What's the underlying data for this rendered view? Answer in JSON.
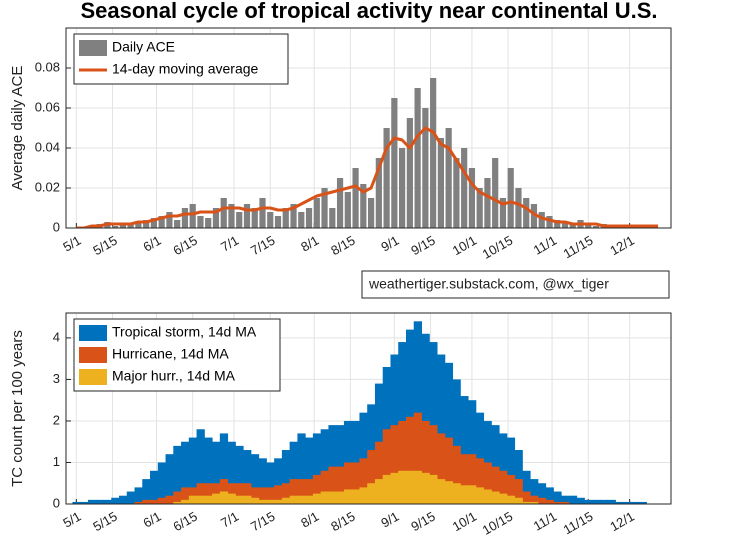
{
  "chart_data": [
    {
      "type": "bar",
      "title": "Seasonal cycle of tropical activity near continental U.S.",
      "y_label": "Average daily ACE",
      "annotation": "weathertiger.substack.com, @wx_tiger",
      "legend": "upper left",
      "grid": true,
      "x": [
        "5/1",
        "5/4",
        "5/7",
        "5/10",
        "5/13",
        "5/16",
        "5/19",
        "5/22",
        "5/25",
        "5/28",
        "5/31",
        "6/3",
        "6/6",
        "6/9",
        "6/12",
        "6/15",
        "6/18",
        "6/21",
        "6/24",
        "6/27",
        "6/30",
        "7/3",
        "7/6",
        "7/9",
        "7/12",
        "7/15",
        "7/18",
        "7/21",
        "7/24",
        "7/27",
        "7/30",
        "8/2",
        "8/5",
        "8/8",
        "8/11",
        "8/14",
        "8/17",
        "8/20",
        "8/23",
        "8/26",
        "8/29",
        "9/1",
        "9/4",
        "9/7",
        "9/10",
        "9/13",
        "9/16",
        "9/19",
        "9/22",
        "9/25",
        "9/28",
        "10/1",
        "10/4",
        "10/7",
        "10/10",
        "10/13",
        "10/16",
        "10/19",
        "10/22",
        "10/25",
        "10/28",
        "10/31",
        "11/3",
        "11/6",
        "11/9",
        "11/12",
        "11/15",
        "11/18",
        "11/21",
        "11/24",
        "11/27",
        "11/30",
        "12/3",
        "12/6",
        "12/9",
        "12/12"
      ],
      "xlim": [
        "4/27",
        "12/17"
      ],
      "xticks": [
        "5/1",
        "5/15",
        "6/1",
        "6/15",
        "7/1",
        "7/15",
        "8/1",
        "8/15",
        "9/1",
        "9/15",
        "10/1",
        "10/15",
        "11/1",
        "11/15",
        "12/1"
      ],
      "ylim": [
        0,
        0.1
      ],
      "yticks": [
        0,
        0.02,
        0.04,
        0.06,
        0.08
      ],
      "series": [
        {
          "name": "Daily ACE",
          "type": "bar",
          "color": "#808080",
          "values": [
            0,
            0,
            0.001,
            0.002,
            0.003,
            0.001,
            0.002,
            0.002,
            0.003,
            0.004,
            0.005,
            0.006,
            0.008,
            0.004,
            0.01,
            0.012,
            0.006,
            0.005,
            0.01,
            0.015,
            0.012,
            0.008,
            0.012,
            0.01,
            0.015,
            0.008,
            0.006,
            0.01,
            0.012,
            0.008,
            0.01,
            0.015,
            0.02,
            0.01,
            0.025,
            0.018,
            0.03,
            0.022,
            0.015,
            0.035,
            0.05,
            0.065,
            0.04,
            0.055,
            0.07,
            0.06,
            0.075,
            0.045,
            0.05,
            0.035,
            0.04,
            0.03,
            0.02,
            0.025,
            0.035,
            0.015,
            0.03,
            0.02,
            0.015,
            0.012,
            0.008,
            0.006,
            0.004,
            0.003,
            0.002,
            0.004,
            0.002,
            0.001,
            0.002,
            0.001,
            0.001,
            0.001,
            0,
            0.001,
            0,
            0
          ]
        },
        {
          "name": "14-day moving average",
          "type": "line",
          "color": "#d95319",
          "values": [
            0,
            0,
            0.001,
            0.001,
            0.002,
            0.002,
            0.002,
            0.002,
            0.003,
            0.003,
            0.004,
            0.005,
            0.006,
            0.006,
            0.007,
            0.007,
            0.008,
            0.008,
            0.008,
            0.01,
            0.01,
            0.01,
            0.009,
            0.009,
            0.01,
            0.01,
            0.009,
            0.009,
            0.01,
            0.012,
            0.014,
            0.016,
            0.017,
            0.018,
            0.019,
            0.02,
            0.021,
            0.018,
            0.02,
            0.03,
            0.04,
            0.045,
            0.044,
            0.04,
            0.046,
            0.05,
            0.048,
            0.042,
            0.04,
            0.034,
            0.028,
            0.022,
            0.018,
            0.016,
            0.014,
            0.012,
            0.013,
            0.012,
            0.01,
            0.007,
            0.005,
            0.004,
            0.003,
            0.003,
            0.002,
            0.002,
            0.002,
            0.002,
            0.001,
            0.001,
            0.001,
            0.001,
            0.001,
            0.001,
            0.001,
            0.001
          ]
        }
      ]
    },
    {
      "type": "area",
      "y_label": "TC count per 100 years",
      "legend": "upper left",
      "grid": true,
      "x": [
        "5/1",
        "5/4",
        "5/7",
        "5/10",
        "5/13",
        "5/16",
        "5/19",
        "5/22",
        "5/25",
        "5/28",
        "5/31",
        "6/3",
        "6/6",
        "6/9",
        "6/12",
        "6/15",
        "6/18",
        "6/21",
        "6/24",
        "6/27",
        "6/30",
        "7/3",
        "7/6",
        "7/9",
        "7/12",
        "7/15",
        "7/18",
        "7/21",
        "7/24",
        "7/27",
        "7/30",
        "8/2",
        "8/5",
        "8/8",
        "8/11",
        "8/14",
        "8/17",
        "8/20",
        "8/23",
        "8/26",
        "8/29",
        "9/1",
        "9/4",
        "9/7",
        "9/10",
        "9/13",
        "9/16",
        "9/19",
        "9/22",
        "9/25",
        "9/28",
        "10/1",
        "10/4",
        "10/7",
        "10/10",
        "10/13",
        "10/16",
        "10/19",
        "10/22",
        "10/25",
        "10/28",
        "10/31",
        "11/3",
        "11/6",
        "11/9",
        "11/12",
        "11/15",
        "11/18",
        "11/21",
        "11/24",
        "11/27",
        "11/30",
        "12/3",
        "12/6",
        "12/9",
        "12/12"
      ],
      "xlim": [
        "4/27",
        "12/17"
      ],
      "xticks": [
        "5/1",
        "5/15",
        "6/1",
        "6/15",
        "7/1",
        "7/15",
        "8/1",
        "8/15",
        "9/1",
        "9/15",
        "10/1",
        "10/15",
        "11/1",
        "11/15",
        "12/1"
      ],
      "ylim": [
        0,
        4.6
      ],
      "yticks": [
        0,
        1,
        2,
        3,
        4
      ],
      "series": [
        {
          "name": "Tropical storm, 14d MA",
          "color": "#0072bd",
          "values": [
            0.05,
            0.05,
            0.1,
            0.1,
            0.1,
            0.15,
            0.2,
            0.3,
            0.4,
            0.6,
            0.8,
            1.0,
            1.2,
            1.4,
            1.5,
            1.6,
            1.8,
            1.6,
            1.5,
            1.7,
            1.5,
            1.4,
            1.3,
            1.2,
            1.1,
            1.0,
            1.1,
            1.3,
            1.5,
            1.7,
            1.6,
            1.7,
            1.8,
            1.9,
            1.9,
            2.0,
            2.0,
            2.2,
            2.4,
            2.9,
            3.3,
            3.6,
            3.9,
            4.2,
            4.4,
            4.1,
            3.9,
            3.6,
            3.4,
            3.0,
            2.6,
            2.5,
            2.2,
            2.0,
            1.9,
            1.7,
            1.6,
            1.3,
            0.8,
            0.6,
            0.5,
            0.4,
            0.3,
            0.2,
            0.2,
            0.15,
            0.1,
            0.1,
            0.1,
            0.1,
            0.05,
            0.05,
            0.05,
            0.05,
            0,
            0
          ]
        },
        {
          "name": "Hurricane, 14d MA",
          "color": "#d95319",
          "values": [
            0,
            0,
            0,
            0,
            0,
            0,
            0,
            0,
            0.05,
            0.1,
            0.1,
            0.15,
            0.2,
            0.3,
            0.4,
            0.4,
            0.5,
            0.5,
            0.5,
            0.6,
            0.5,
            0.5,
            0.5,
            0.4,
            0.4,
            0.4,
            0.45,
            0.5,
            0.6,
            0.6,
            0.6,
            0.7,
            0.8,
            0.9,
            0.9,
            1.0,
            1.0,
            1.1,
            1.3,
            1.5,
            1.8,
            1.9,
            2.0,
            2.1,
            2.2,
            2.0,
            1.9,
            1.7,
            1.6,
            1.4,
            1.2,
            1.2,
            1.1,
            1.0,
            0.9,
            0.8,
            0.7,
            0.6,
            0.3,
            0.2,
            0.15,
            0.1,
            0.05,
            0.05,
            0,
            0,
            0,
            0,
            0,
            0,
            0,
            0,
            0,
            0,
            0,
            0
          ]
        },
        {
          "name": "Major hurr., 14d MA",
          "color": "#edb120",
          "values": [
            0,
            0,
            0,
            0,
            0,
            0,
            0,
            0,
            0,
            0,
            0,
            0,
            0,
            0.05,
            0.1,
            0.2,
            0.2,
            0.2,
            0.25,
            0.3,
            0.25,
            0.2,
            0.2,
            0.15,
            0.1,
            0.1,
            0.1,
            0.15,
            0.2,
            0.2,
            0.2,
            0.25,
            0.3,
            0.3,
            0.3,
            0.35,
            0.35,
            0.4,
            0.5,
            0.6,
            0.7,
            0.75,
            0.8,
            0.8,
            0.8,
            0.75,
            0.7,
            0.6,
            0.55,
            0.5,
            0.45,
            0.45,
            0.4,
            0.35,
            0.3,
            0.25,
            0.2,
            0.15,
            0.05,
            0.05,
            0,
            0,
            0,
            0,
            0,
            0,
            0,
            0,
            0,
            0,
            0,
            0,
            0,
            0,
            0,
            0
          ]
        }
      ]
    }
  ]
}
